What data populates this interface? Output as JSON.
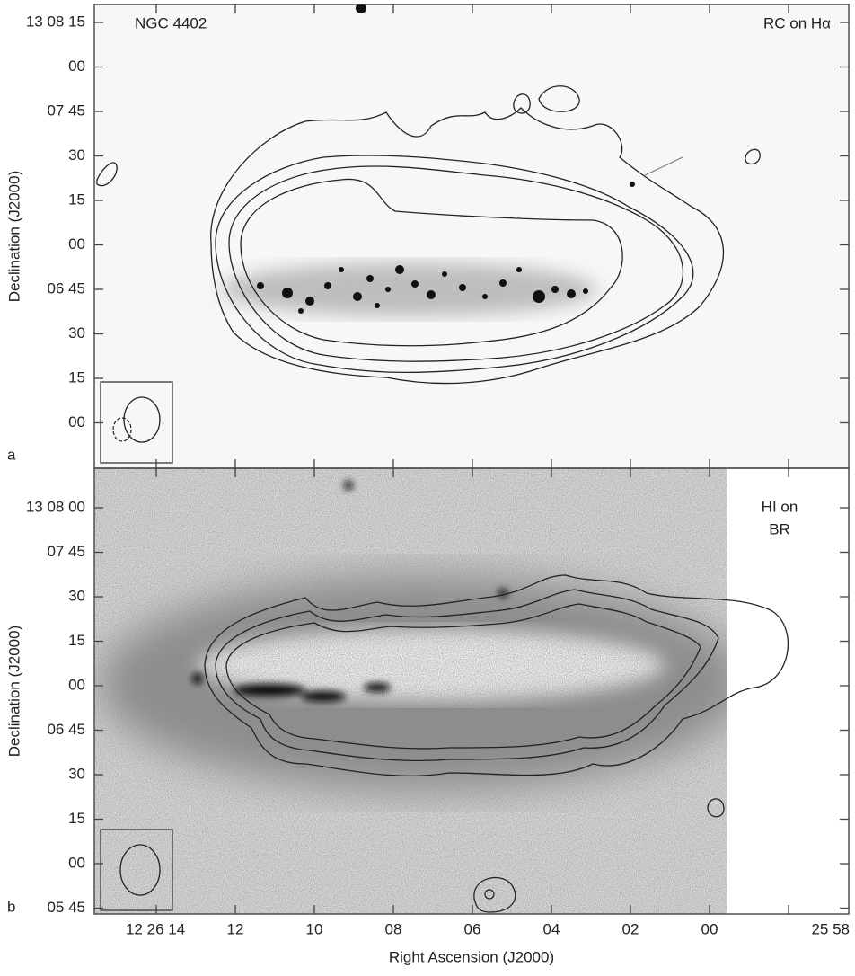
{
  "panels": [
    {
      "label": "a",
      "left_annotation": "NGC 4402",
      "right_annotation": "RC on Hα",
      "y_axis_label": "Declination (J2000)",
      "y_tick_labels": [
        "13 08 15",
        "00",
        "07 45",
        "30",
        "15",
        "00",
        "06 45",
        "30",
        "15",
        "00"
      ]
    },
    {
      "label": "b",
      "right_annotation": [
        "HI on",
        "BR"
      ],
      "y_axis_label": "Declination (J2000)",
      "y_tick_labels": [
        "13 08 00",
        "07 45",
        "30",
        "15",
        "00",
        "06 45",
        "30",
        "15",
        "00",
        "05 45"
      ]
    }
  ],
  "x_axis": {
    "label": "Right Ascension (J2000)",
    "tick_labels": [
      "12 26 14",
      "12",
      "10",
      "08",
      "06",
      "04",
      "02",
      "00",
      "25 58"
    ]
  }
}
